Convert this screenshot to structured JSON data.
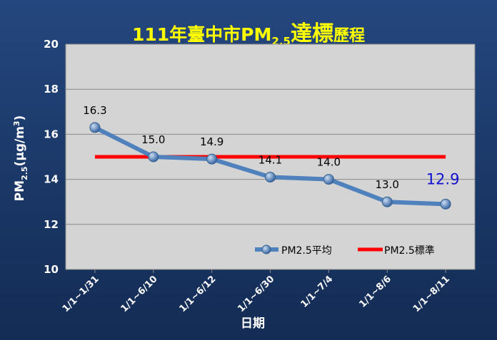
{
  "title": {
    "main": "111年臺中市PM",
    "sub": "2.5",
    "emphasis": "達標",
    "tail": "歷程"
  },
  "chart_data": {
    "type": "line",
    "categories": [
      "1/1~1/31",
      "1/1~6/10",
      "1/1~6/12",
      "1/1~6/30",
      "1/1~7/4",
      "1/1~8/6",
      "1/1~8/11"
    ],
    "series": [
      {
        "name": "PM2.5平均",
        "values": [
          16.3,
          15.0,
          14.9,
          14.1,
          14.0,
          13.0,
          12.9
        ],
        "data_labels": [
          "16.3",
          "15.0",
          "14.9",
          "14.1",
          "14.0",
          "13.0",
          "12.9"
        ],
        "color": "#4f81bd"
      },
      {
        "name": "PM2.5標準",
        "values": [
          15,
          15,
          15,
          15,
          15,
          15,
          15
        ],
        "color": "#ff0000"
      }
    ],
    "highlight_index": 6,
    "highlight_color": "#1010d0",
    "xlabel": "日期",
    "ylabel": {
      "main": "PM",
      "sub": "2.5",
      "unit": "(μg/m",
      "sup": "3",
      "close": ")"
    },
    "ylim": [
      10,
      20
    ],
    "yticks": [
      "10",
      "12",
      "14",
      "16",
      "18",
      "20"
    ],
    "grid": true,
    "legend": "bottom-right",
    "plot_background": "#d4d4d4"
  }
}
